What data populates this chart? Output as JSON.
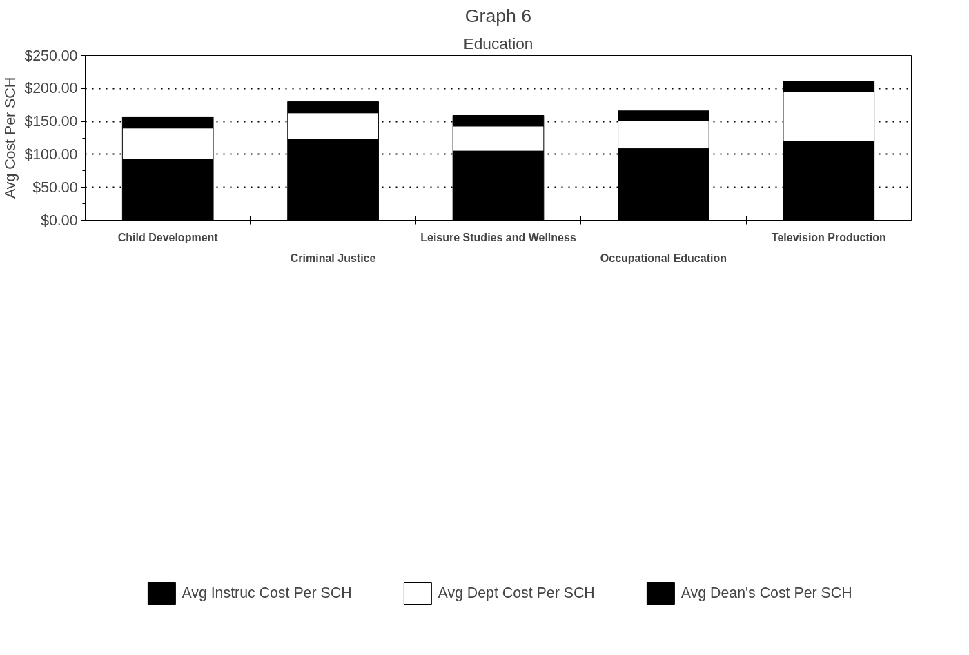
{
  "chart_data": {
    "type": "bar",
    "title": "Graph 6",
    "subtitle": "Education",
    "ylabel": "Avg Cost Per SCH",
    "categories": [
      "Child Development",
      "Criminal Justice",
      "Leisure Studies and Wellness",
      "Occupational Education",
      "Television Production"
    ],
    "stacked": true,
    "series": [
      {
        "name": "Avg Instruc Cost Per SCH",
        "color": "#000000",
        "values": [
          93,
          123,
          105,
          109,
          120
        ]
      },
      {
        "name": "Avg Dept Cost Per SCH",
        "color": "#ffffff",
        "values": [
          47,
          40,
          38,
          42,
          75
        ]
      },
      {
        "name": "Avg Dean's Cost Per SCH",
        "color": "#000000",
        "values": [
          17,
          17,
          16,
          15,
          16
        ]
      }
    ],
    "ylim": [
      0,
      250
    ],
    "yticks": [
      {
        "value": 0,
        "label": "$0.00"
      },
      {
        "value": 25,
        "label": null
      },
      {
        "value": 50,
        "label": "$50.00"
      },
      {
        "value": 75,
        "label": null
      },
      {
        "value": 100,
        "label": "$100.00"
      },
      {
        "value": 125,
        "label": null
      },
      {
        "value": 150,
        "label": "$150.00"
      },
      {
        "value": 175,
        "label": null
      },
      {
        "value": 200,
        "label": "$200.00"
      },
      {
        "value": 225,
        "label": null
      },
      {
        "value": 250,
        "label": "$250.00"
      }
    ],
    "grid": "y",
    "legend": "bottom"
  }
}
